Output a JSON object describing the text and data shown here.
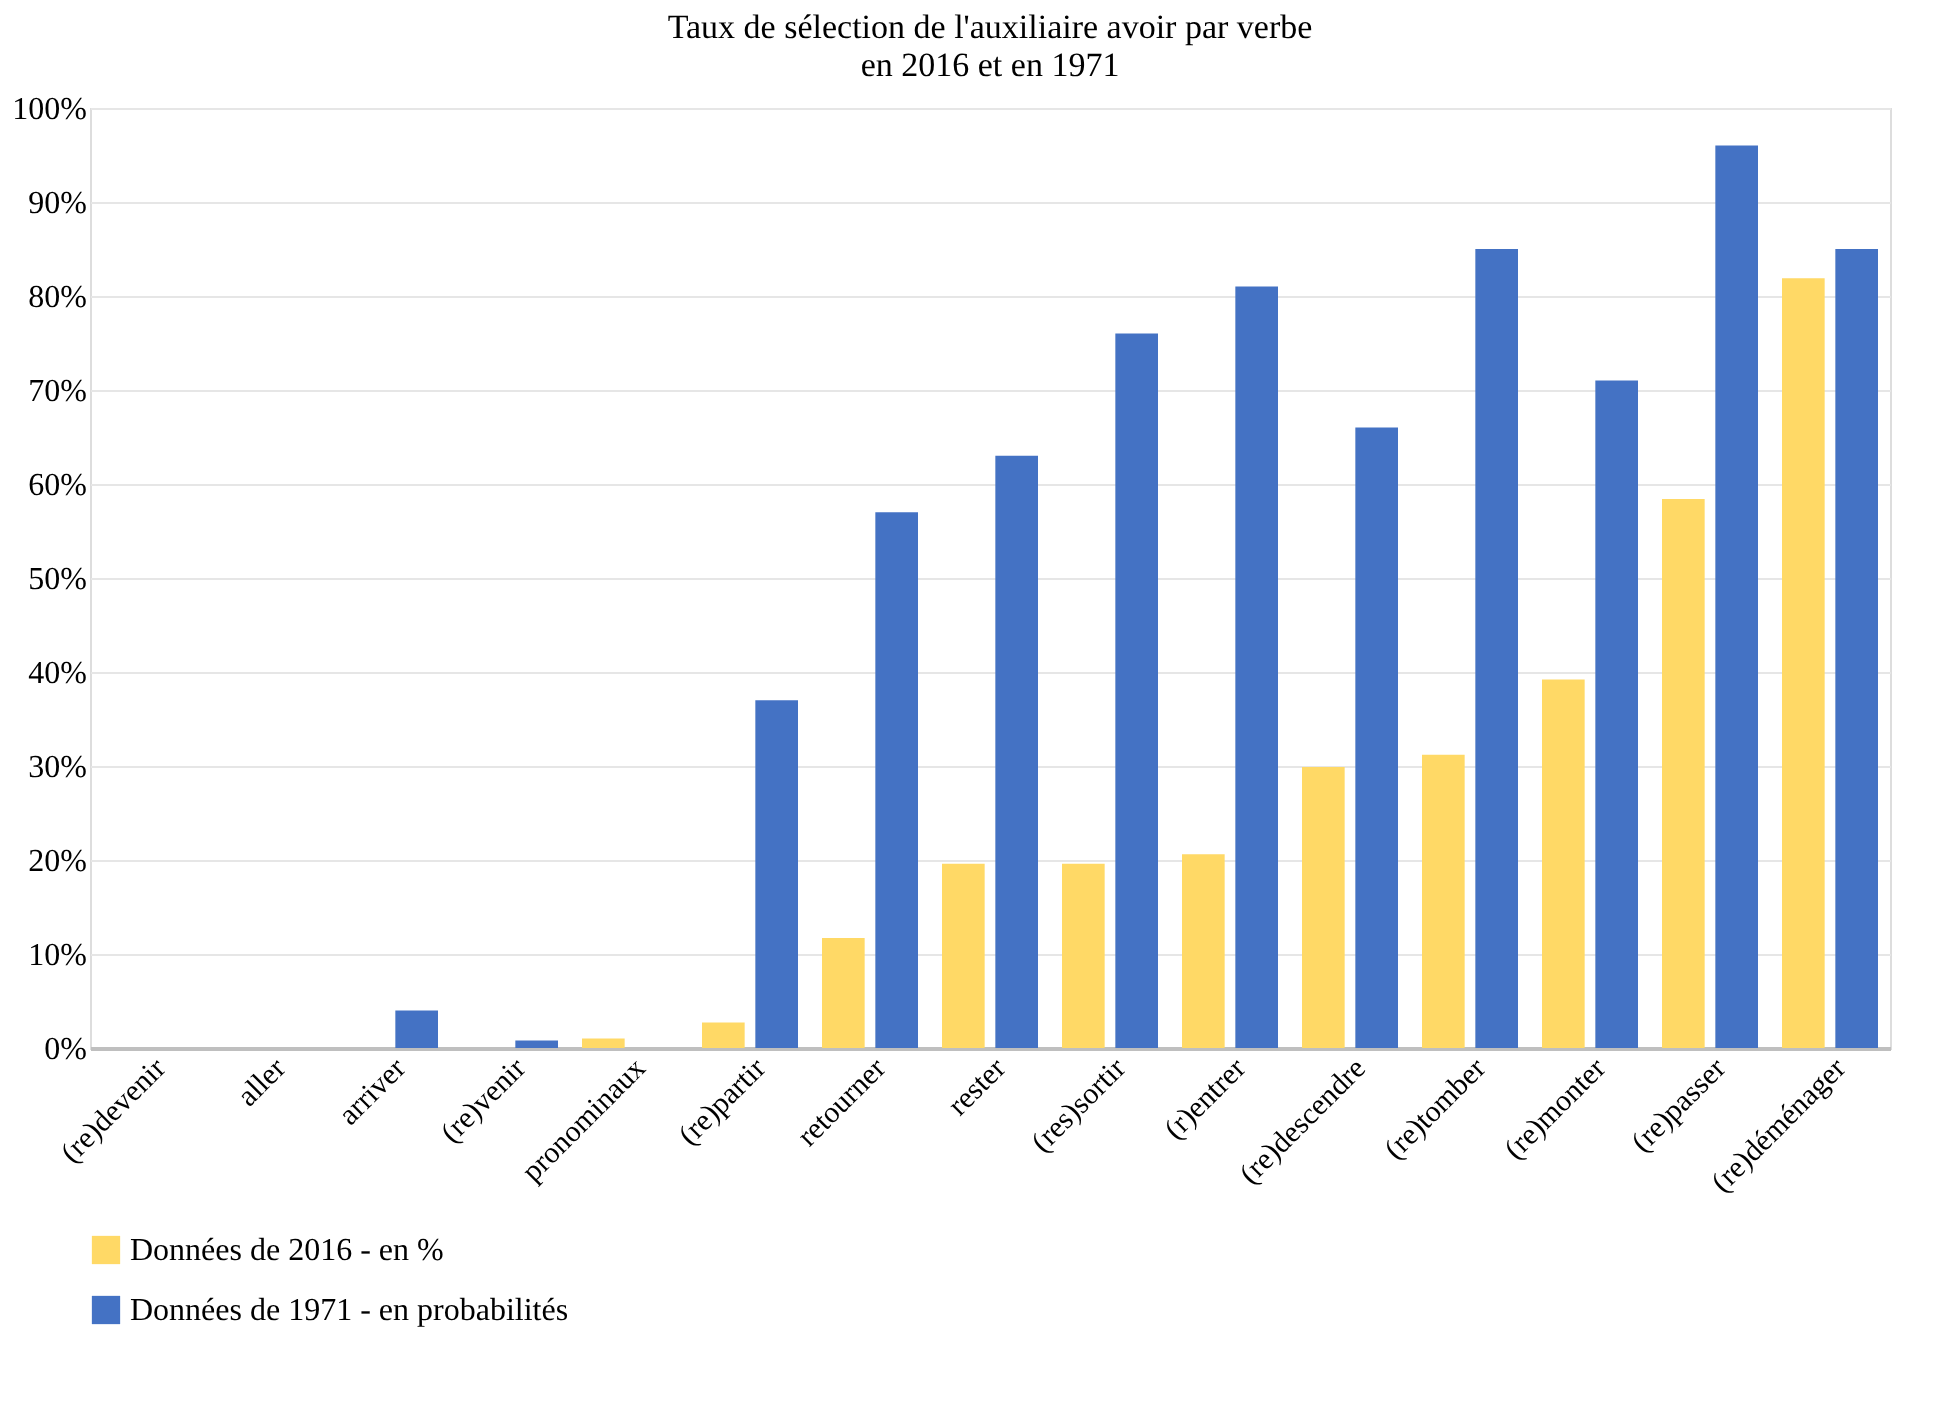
{
  "chart_data": {
    "type": "bar",
    "title": "Taux de sélection de l'auxiliaire avoir par verbe\nen 2016 et en 1971",
    "categories": [
      "(re)devenir",
      "aller",
      "arriver",
      "(re)venir",
      "pronominaux",
      "(re)partir",
      "retourner",
      "rester",
      "(res)sortir",
      "(r)entrer",
      "(re)descendre",
      "(re)tomber",
      "(re)monter",
      "(re)passer",
      "(re)déménager"
    ],
    "series": [
      {
        "name": "Données de 2016 - en %",
        "color": "#ffd966",
        "values": [
          0,
          0,
          0,
          0,
          1,
          2.7,
          11.7,
          19.6,
          19.6,
          20.6,
          29.9,
          31.2,
          39.2,
          58.4,
          81.9
        ]
      },
      {
        "name": "Données de 1971 - en probabilités",
        "color": "#4472c4",
        "values": [
          0,
          0,
          4,
          0.8,
          0,
          37,
          57,
          63,
          76,
          81,
          66,
          85,
          71,
          96,
          85
        ]
      }
    ],
    "ylim": [
      0,
      100
    ],
    "yticks": [
      {
        "value": 0,
        "label": "0%"
      },
      {
        "value": 10,
        "label": "10%"
      },
      {
        "value": 20,
        "label": "20%"
      },
      {
        "value": 30,
        "label": "30%"
      },
      {
        "value": 40,
        "label": "40%"
      },
      {
        "value": 50,
        "label": "50%"
      },
      {
        "value": 60,
        "label": "60%"
      },
      {
        "value": 70,
        "label": "70%"
      },
      {
        "value": 80,
        "label": "80%"
      },
      {
        "value": 90,
        "label": "90%"
      },
      {
        "value": 100,
        "label": "100%"
      }
    ],
    "grid": "y",
    "legend": "bottom"
  }
}
